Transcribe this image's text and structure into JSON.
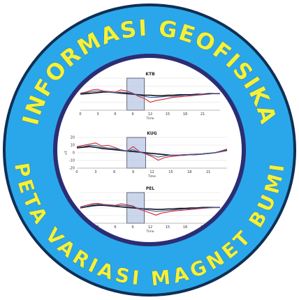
{
  "emblem": {
    "top_text": "INFORMASI GEOFISIKA",
    "bottom_text": "PETA VARIASI MAGNET BUMI",
    "colors": {
      "outer_ring": "#2aa7ea",
      "inner_border": "#2b2d75",
      "outer_border": "#0f2f54",
      "text": "#f4f13a",
      "disc": "#ffffff"
    }
  },
  "chart_data": [
    {
      "type": "line",
      "title": "KTB",
      "xlabel": "Time",
      "x_ticks": [
        "0",
        "3",
        "6",
        "9",
        "12",
        "15",
        "18",
        "21"
      ],
      "xlim": [
        0,
        24
      ],
      "ylim": [
        -30,
        30
      ],
      "highlight_x": [
        8,
        11
      ],
      "series": [
        {
          "color": "#111111",
          "x": [
            0,
            1,
            2,
            3,
            4,
            5,
            6,
            7,
            8,
            9,
            10,
            11,
            12,
            13,
            14,
            15,
            16,
            17,
            18,
            19,
            20,
            21,
            22,
            23,
            24
          ],
          "y": [
            0,
            1,
            2,
            3,
            4,
            4,
            3,
            2,
            1,
            0,
            -1,
            -2,
            -2,
            -3,
            -3,
            -2,
            -2,
            -1,
            -1,
            -1,
            0,
            0,
            1,
            1,
            1
          ]
        },
        {
          "color": "#d62728",
          "x": [
            0,
            1,
            2,
            3,
            4,
            5,
            6,
            7,
            8,
            9,
            10,
            11,
            12,
            13,
            14,
            15,
            16,
            17,
            18,
            19,
            20,
            21,
            22,
            23,
            24
          ],
          "y": [
            2,
            4,
            8,
            9,
            6,
            5,
            4,
            8,
            6,
            2,
            -4,
            -8,
            -15,
            -12,
            -10,
            -8,
            -6,
            -5,
            -4,
            -3,
            -2,
            -1,
            0,
            1,
            1
          ]
        },
        {
          "color": "#3b5ba5",
          "x": [
            0,
            1,
            2,
            3,
            4,
            5,
            6,
            7,
            8,
            9,
            10,
            11,
            12,
            13,
            14,
            15,
            16,
            17,
            18,
            19,
            20,
            21,
            22,
            23,
            24
          ],
          "y": [
            1,
            3,
            5,
            6,
            5,
            4,
            3,
            4,
            3,
            1,
            -2,
            -4,
            -6,
            -6,
            -5,
            -4,
            -4,
            -3,
            -2,
            -2,
            -1,
            0,
            0,
            1,
            1
          ]
        }
      ]
    },
    {
      "type": "line",
      "title": "KUG",
      "xlabel": "Time",
      "ylabel": "nT",
      "x_ticks": [
        "0",
        "3",
        "6",
        "9",
        "12",
        "15",
        "18",
        "21"
      ],
      "y_ticks": [
        "20",
        "10",
        "0",
        "-10",
        "-20"
      ],
      "xlim": [
        0,
        24
      ],
      "ylim": [
        -25,
        25
      ],
      "highlight_x": [
        8,
        11
      ],
      "series": [
        {
          "color": "#111111",
          "x": [
            0,
            1,
            2,
            3,
            4,
            5,
            6,
            7,
            8,
            9,
            10,
            11,
            12,
            13,
            14,
            15,
            16,
            17,
            18,
            19,
            20,
            21,
            22,
            23,
            24
          ],
          "y": [
            8,
            9,
            10,
            9,
            7,
            6,
            5,
            4,
            3,
            2,
            1,
            0,
            -1,
            -2,
            -3,
            -4,
            -4,
            -4,
            -3,
            -3,
            -2,
            -1,
            0,
            2,
            4
          ]
        },
        {
          "color": "#d62728",
          "x": [
            0,
            1,
            2,
            3,
            4,
            5,
            6,
            7,
            8,
            9,
            10,
            11,
            12,
            13,
            14,
            15,
            16,
            17,
            18,
            19,
            20,
            21,
            22,
            23,
            24
          ],
          "y": [
            10,
            12,
            14,
            16,
            11,
            12,
            9,
            5,
            3,
            10,
            2,
            -2,
            -6,
            -12,
            -8,
            -6,
            -5,
            -4,
            -3,
            -3,
            -2,
            -1,
            0,
            3,
            6
          ]
        },
        {
          "color": "#3b5ba5",
          "x": [
            0,
            1,
            2,
            3,
            4,
            5,
            6,
            7,
            8,
            9,
            10,
            11,
            12,
            13,
            14,
            15,
            16,
            17,
            18,
            19,
            20,
            21,
            22,
            23,
            24
          ],
          "y": [
            9,
            10,
            12,
            12,
            9,
            8,
            7,
            5,
            3,
            5,
            1,
            -1,
            -4,
            -7,
            -5,
            -4,
            -4,
            -3,
            -3,
            -2,
            -2,
            -1,
            0,
            2,
            5
          ]
        }
      ]
    },
    {
      "type": "line",
      "title": "PEL",
      "xlabel": "Time",
      "x_ticks": [
        "0",
        "3",
        "6",
        "9",
        "12",
        "15",
        "18",
        "21"
      ],
      "xlim": [
        0,
        24
      ],
      "ylim": [
        -30,
        30
      ],
      "highlight_x": [
        8,
        11
      ],
      "series": [
        {
          "color": "#111111",
          "x": [
            0,
            1,
            2,
            3,
            4,
            5,
            6,
            7,
            8,
            9,
            10,
            11,
            12,
            13,
            14,
            15,
            16,
            17,
            18,
            19,
            20,
            21,
            22,
            23,
            24
          ],
          "y": [
            0,
            2,
            4,
            5,
            5,
            4,
            3,
            2,
            1,
            0,
            -1,
            -2,
            -2,
            -3,
            -3,
            -2,
            -2,
            -1,
            -1,
            0,
            0,
            1,
            1,
            1,
            1
          ]
        },
        {
          "color": "#d62728",
          "x": [
            0,
            1,
            2,
            3,
            4,
            5,
            6,
            7,
            8,
            9,
            10,
            11,
            12,
            13,
            14,
            15,
            16,
            17,
            18,
            19,
            20,
            21,
            22,
            23,
            24
          ],
          "y": [
            2,
            5,
            8,
            9,
            7,
            6,
            5,
            8,
            6,
            4,
            -2,
            -6,
            -10,
            -14,
            -10,
            -8,
            -6,
            -5,
            -4,
            -3,
            -2,
            -1,
            0,
            1,
            1
          ]
        },
        {
          "color": "#3b5ba5",
          "x": [
            0,
            1,
            2,
            3,
            4,
            5,
            6,
            7,
            8,
            9,
            10,
            11,
            12,
            13,
            14,
            15,
            16,
            17,
            18,
            19,
            20,
            21,
            22,
            23,
            24
          ],
          "y": [
            1,
            3,
            6,
            7,
            6,
            5,
            4,
            5,
            4,
            2,
            -1,
            -3,
            -5,
            -7,
            -6,
            -5,
            -4,
            -3,
            -2,
            -2,
            -1,
            0,
            0,
            1,
            1
          ]
        }
      ]
    }
  ]
}
